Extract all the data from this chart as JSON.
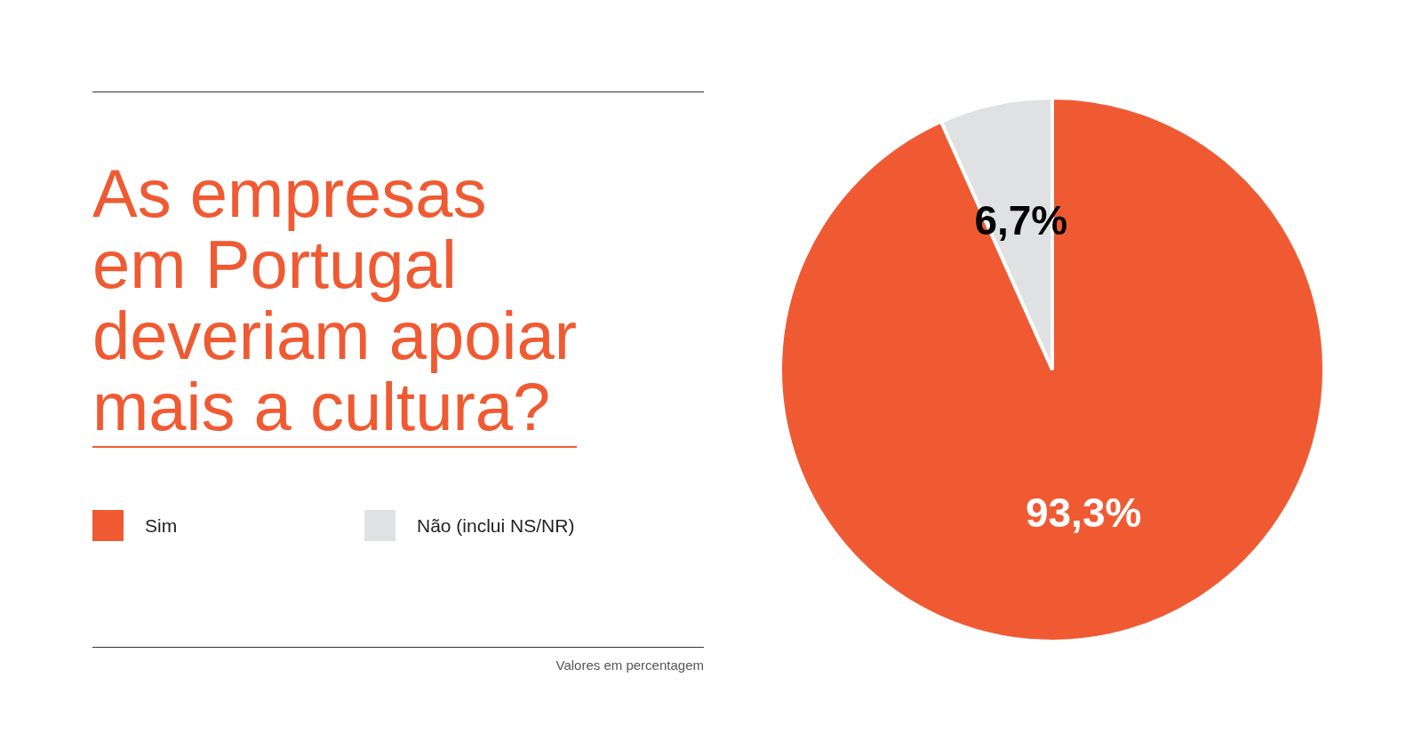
{
  "chart_data": {
    "type": "pie",
    "title": "As empresas\nem Portugal\ndeveriam apoiar\nmais a cultura?",
    "categories": [
      "Sim",
      "Não (inclui NS/NR)"
    ],
    "values": [
      93.3,
      6.7
    ],
    "colors": [
      "#f05a32",
      "#e0e1e3"
    ],
    "value_labels": [
      "93,3%",
      "6,7%"
    ],
    "legend": "left",
    "annotations": [
      "Valores em percentagem"
    ]
  }
}
